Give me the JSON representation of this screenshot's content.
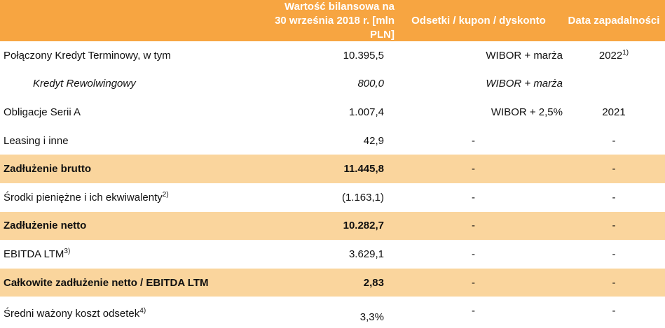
{
  "header": {
    "value_line1": "Wartość bilansowa na",
    "value_line2": "30 września 2018 r. [mln PLN]",
    "coupon": "Odsetki / kupon / dyskonto",
    "maturity": "Data zapadalności"
  },
  "rows": [
    {
      "label": "Połączony Kredyt Terminowy, w tym",
      "value": "10.395,5",
      "coupon": "WIBOR + marża",
      "date": "2022",
      "date_sup": "1)"
    },
    {
      "label": "Kredyt Rewolwingowy",
      "value": "800,0",
      "coupon": "WIBOR + marża",
      "date": ""
    },
    {
      "label": "Obligacje Serii A",
      "value": "1.007,4",
      "coupon": "WIBOR + 2,5%",
      "date": "2021"
    },
    {
      "label": "Leasing i inne",
      "value": "42,9",
      "coupon": "-",
      "date": "-"
    },
    {
      "label": "Zadłużenie brutto",
      "value": "11.445,8",
      "coupon": "-",
      "date": "-"
    },
    {
      "label": "Środki pieniężne i ich ekwiwalenty",
      "label_sup": "2)",
      "value": "(1.163,1)",
      "coupon": "-",
      "date": "-"
    },
    {
      "label": "Zadłużenie netto",
      "value": "10.282,7",
      "coupon": "-",
      "date": "-"
    },
    {
      "label": "EBITDA LTM",
      "label_sup": "3)",
      "value": "3.629,1",
      "coupon": "-",
      "date": "-"
    },
    {
      "label": "Całkowite zadłużenie netto / EBITDA LTM",
      "value": "2,83",
      "coupon": "-",
      "date": "-"
    },
    {
      "label": "Średni ważony koszt odsetek",
      "label_sup": "4)",
      "value": "3,3%",
      "coupon": "-",
      "date": "-"
    }
  ]
}
